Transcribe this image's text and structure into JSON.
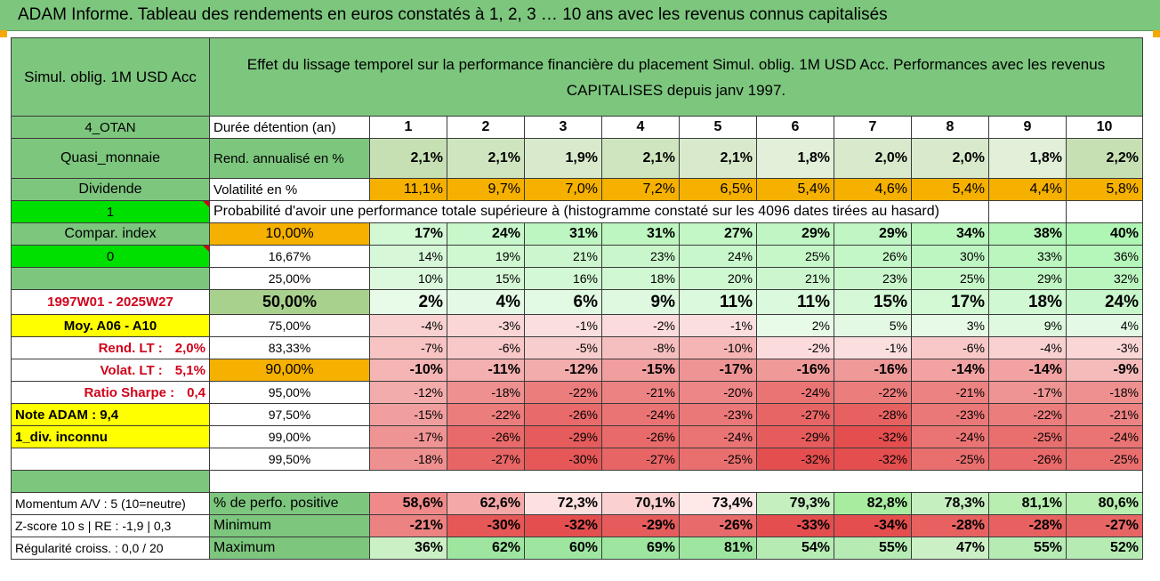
{
  "title": "ADAM Informe. Tableau des rendements en euros constatés à 1, 2, 3 … 10 ans avec les revenus connus capitalisés",
  "fund_name": "Simul. oblig. 1M USD Acc",
  "description": "Effet du lissage temporel sur la performance financière du placement Simul. oblig. 1M USD Acc. Performances avec les revenus CAPITALISES depuis janv 1997.",
  "left_panel": {
    "code": "4_OTAN",
    "category": "Quasi_monnaie",
    "dividend_label": "Dividende",
    "value_1": "1",
    "compar_index": "Compar. index",
    "value_0": "0",
    "period": "1997W01 - 2025W27",
    "moy": "Moy. A06 - A10",
    "rend_lt_label": "Rend. LT :",
    "rend_lt_value": "2,0%",
    "volat_lt_label": "Volat. LT :",
    "volat_lt_value": "5,1%",
    "sharpe_label": "Ratio Sharpe :",
    "sharpe_value": "0,4",
    "note_adam": "Note ADAM : 9,4",
    "div_inconnu": "1_div. inconnu",
    "momentum": "Momentum A/V : 5 (10=neutre)",
    "zscore": "Z-score 10 s | RE : -1,9 | 0,3",
    "regularite": "Régularité croiss. : 0,0 / 20"
  },
  "header": {
    "duration_label": "Durée détention (an)",
    "years": [
      "1",
      "2",
      "3",
      "4",
      "5",
      "6",
      "7",
      "8",
      "9",
      "10"
    ],
    "rend_label": "Rend. annualisé en %",
    "rend": [
      "2,1%",
      "2,1%",
      "1,9%",
      "2,1%",
      "2,1%",
      "1,8%",
      "2,0%",
      "2,0%",
      "1,8%",
      "2,2%"
    ],
    "vol_label": "Volatilité en %",
    "vol": [
      "11,1%",
      "9,7%",
      "7,0%",
      "7,2%",
      "6,5%",
      "5,4%",
      "4,6%",
      "5,4%",
      "4,4%",
      "5,8%"
    ],
    "prob_label": "Probabilité d'avoir une performance totale supérieure à (histogramme constaté sur les 4096 dates tirées au hasard)"
  },
  "perf_rows": [
    {
      "threshold": "10,00%",
      "values": [
        "17%",
        "24%",
        "31%",
        "31%",
        "27%",
        "29%",
        "29%",
        "34%",
        "38%",
        "40%"
      ],
      "style": "bold",
      "hl": "orange"
    },
    {
      "threshold": "16,67%",
      "values": [
        "14%",
        "19%",
        "21%",
        "23%",
        "24%",
        "25%",
        "26%",
        "30%",
        "33%",
        "36%"
      ],
      "style": "normal",
      "hl": ""
    },
    {
      "threshold": "25,00%",
      "values": [
        "10%",
        "15%",
        "16%",
        "18%",
        "20%",
        "21%",
        "23%",
        "25%",
        "29%",
        "32%"
      ],
      "style": "normal",
      "hl": ""
    },
    {
      "threshold": "50,00%",
      "values": [
        "2%",
        "4%",
        "6%",
        "9%",
        "11%",
        "11%",
        "15%",
        "17%",
        "18%",
        "24%"
      ],
      "style": "big",
      "hl": "lgreen"
    },
    {
      "threshold": "75,00%",
      "values": [
        "-4%",
        "-3%",
        "-1%",
        "-2%",
        "-1%",
        "2%",
        "5%",
        "3%",
        "9%",
        "4%"
      ],
      "style": "normal",
      "hl": ""
    },
    {
      "threshold": "83,33%",
      "values": [
        "-7%",
        "-6%",
        "-5%",
        "-8%",
        "-10%",
        "-2%",
        "-1%",
        "-6%",
        "-4%",
        "-3%"
      ],
      "style": "normal",
      "hl": ""
    },
    {
      "threshold": "90,00%",
      "values": [
        "-10%",
        "-11%",
        "-12%",
        "-15%",
        "-17%",
        "-16%",
        "-16%",
        "-14%",
        "-14%",
        "-9%"
      ],
      "style": "bold",
      "hl": "orange"
    },
    {
      "threshold": "95,00%",
      "values": [
        "-12%",
        "-18%",
        "-22%",
        "-21%",
        "-20%",
        "-24%",
        "-22%",
        "-21%",
        "-17%",
        "-18%"
      ],
      "style": "normal",
      "hl": ""
    },
    {
      "threshold": "97,50%",
      "values": [
        "-15%",
        "-22%",
        "-26%",
        "-24%",
        "-23%",
        "-27%",
        "-28%",
        "-23%",
        "-22%",
        "-21%"
      ],
      "style": "normal",
      "hl": ""
    },
    {
      "threshold": "99,00%",
      "values": [
        "-17%",
        "-26%",
        "-29%",
        "-26%",
        "-24%",
        "-29%",
        "-32%",
        "-24%",
        "-25%",
        "-24%"
      ],
      "style": "normal",
      "hl": ""
    },
    {
      "threshold": "99,50%",
      "values": [
        "-18%",
        "-27%",
        "-30%",
        "-27%",
        "-25%",
        "-32%",
        "-32%",
        "-25%",
        "-26%",
        "-25%"
      ],
      "style": "normal",
      "hl": ""
    }
  ],
  "bottom_rows": [
    {
      "label": "% de perfo. positive",
      "values": [
        "58,6%",
        "62,6%",
        "72,3%",
        "70,1%",
        "73,4%",
        "79,3%",
        "82,8%",
        "78,3%",
        "81,1%",
        "80,6%"
      ]
    },
    {
      "label": "Minimum",
      "values": [
        "-21%",
        "-30%",
        "-32%",
        "-29%",
        "-26%",
        "-33%",
        "-34%",
        "-28%",
        "-28%",
        "-27%"
      ]
    },
    {
      "label": "Maximum",
      "values": [
        "36%",
        "62%",
        "60%",
        "69%",
        "81%",
        "54%",
        "55%",
        "47%",
        "55%",
        "52%"
      ]
    }
  ],
  "colors": {
    "header_green": "#7dc67e",
    "rend_green": "#c6e0b4",
    "orange": "#f5b000",
    "yellow": "#ffff00",
    "bright_green": "#00e000",
    "red_text": "#d0021b"
  }
}
